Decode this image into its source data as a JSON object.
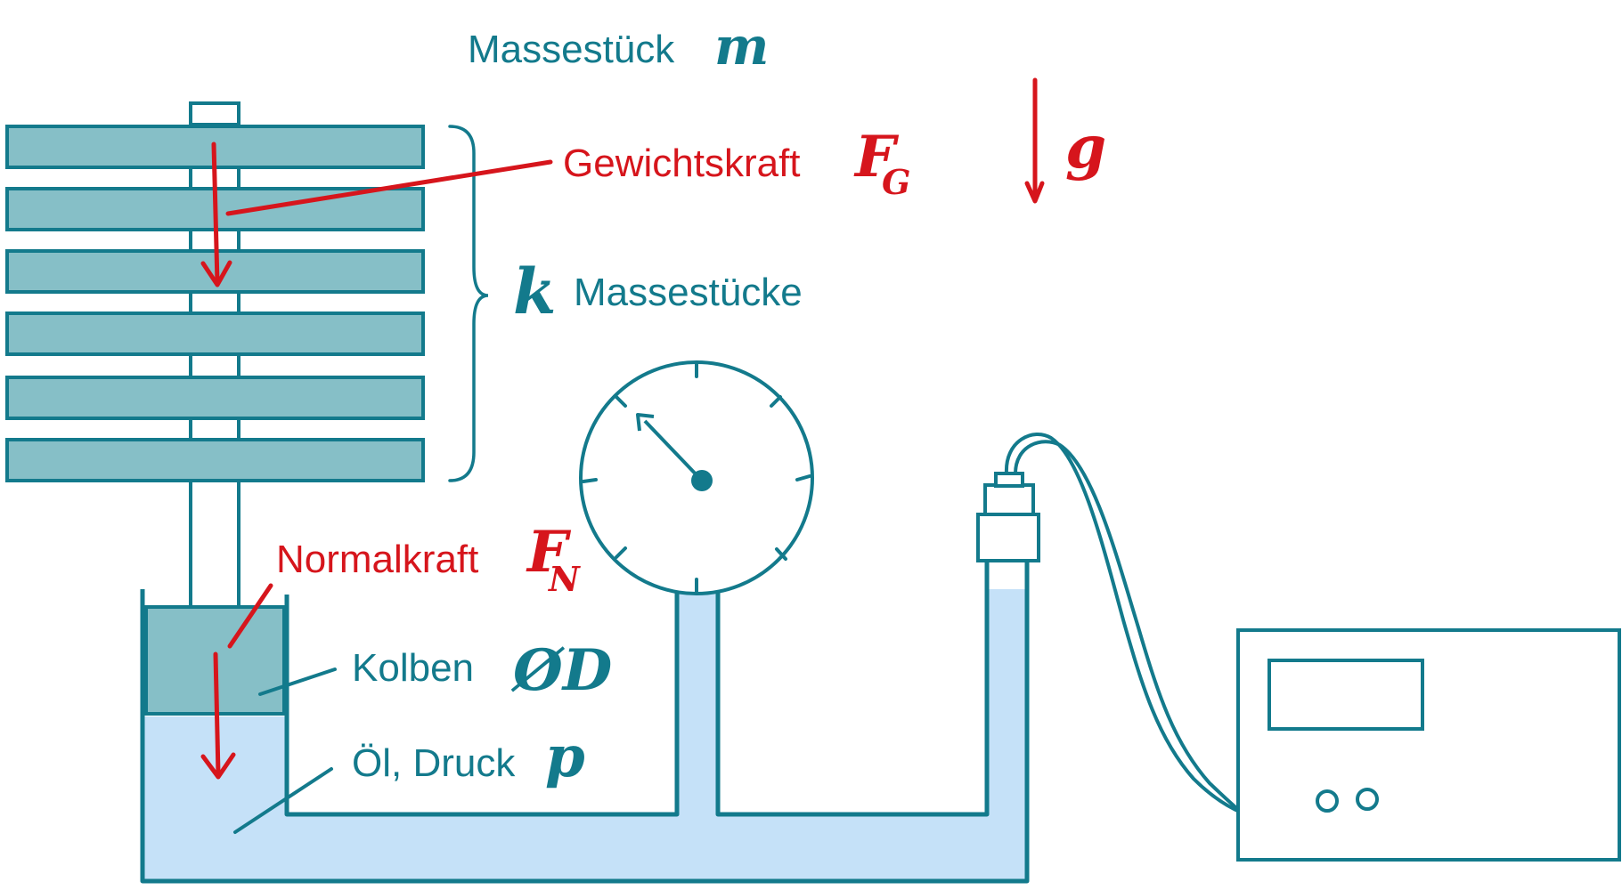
{
  "colors": {
    "teal": "#137a8c",
    "teal_fill": "#86bfc7",
    "oil": "#c5e1f8",
    "red": "#d6151c",
    "white": "#ffffff"
  },
  "labels": {
    "mass_piece": "Massestück",
    "mass_piece_symbol": "m",
    "weight_force": "Gewichtskraft",
    "weight_force_symbol": "F",
    "weight_force_sub": "G",
    "gravity_symbol": "g",
    "mass_pieces_count_symbol": "k",
    "mass_pieces": "Massestücke",
    "normal_force": "Normalkraft",
    "normal_force_symbol": "F",
    "normal_force_sub": "N",
    "piston": "Kolben",
    "piston_diameter_symbol": "ØD",
    "oil_pressure": "Öl, Druck",
    "pressure_symbol": "p"
  },
  "icons": {
    "gauge": "pressure-gauge-icon",
    "sensor": "pressure-sensor-icon",
    "meter": "measuring-device-icon"
  }
}
